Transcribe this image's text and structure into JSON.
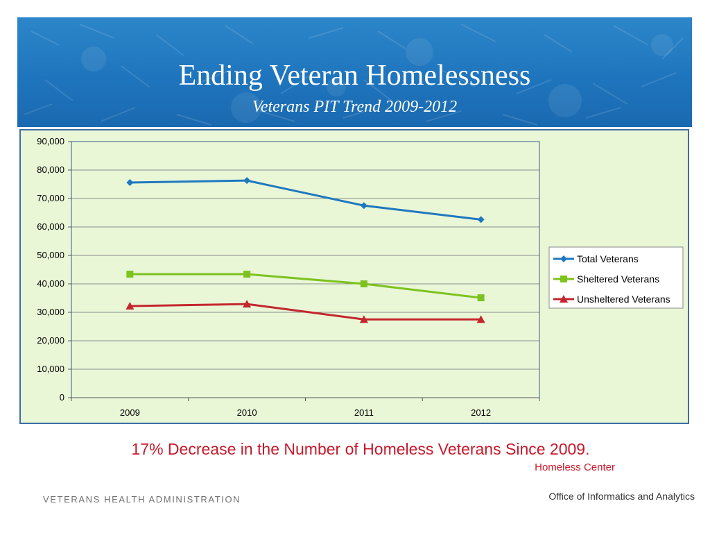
{
  "slide": {
    "title": "Ending Veteran Homelessness",
    "subtitle": "Veterans PIT Trend 2009-2012",
    "headline": "17% Decrease in the Number of Homeless Veterans Since 2009.",
    "source": "Homeless Center",
    "footer_left": "VETERANS HEALTH ADMINISTRATION",
    "footer_right": "Office of Informatics and Analytics"
  },
  "colors": {
    "banner": "#1f75bd",
    "plot_background": "#e9f7d7",
    "total": "#1f78bf",
    "sheltered": "#7dc21f",
    "unsheltered": "#c4262d",
    "headline": "#c8182a"
  },
  "chart_data": {
    "type": "line",
    "categories": [
      "2009",
      "2010",
      "2011",
      "2012"
    ],
    "series": [
      {
        "name": "Total Veterans",
        "marker": "diamond",
        "color": "#1f78bf",
        "values": [
          75600,
          76300,
          67500,
          62600
        ]
      },
      {
        "name": "Sheltered Veterans",
        "marker": "square",
        "color": "#7dc21f",
        "values": [
          43400,
          43400,
          40000,
          35100
        ]
      },
      {
        "name": "Unsheltered Veterans",
        "marker": "triangle",
        "color": "#c4262d",
        "values": [
          32200,
          32900,
          27500,
          27500
        ]
      }
    ],
    "ylim": [
      0,
      90000
    ],
    "yticks": [
      0,
      10000,
      20000,
      30000,
      40000,
      50000,
      60000,
      70000,
      80000,
      90000
    ],
    "ytick_labels": [
      "0",
      "10,000",
      "20,000",
      "30,000",
      "40,000",
      "50,000",
      "60,000",
      "70,000",
      "80,000",
      "90,000"
    ],
    "grid": true,
    "legend_position": "right",
    "title": "",
    "xlabel": "",
    "ylabel": ""
  }
}
